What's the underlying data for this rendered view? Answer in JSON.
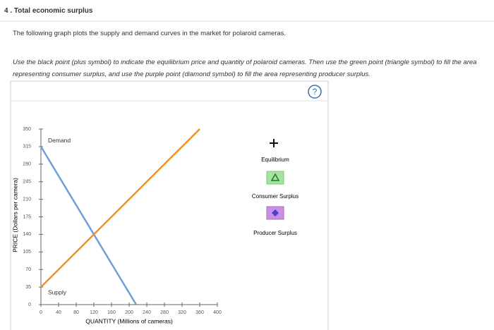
{
  "header": {
    "title": "4 . Total economic surplus"
  },
  "intro": "The following graph plots the supply and demand curves in the market for polaroid cameras.",
  "instructions": "Use the black point (plus symbol) to indicate the equilibrium price and quantity of polaroid cameras. Then use the green point (triangle symbol) to fill the area representing consumer surplus, and use the purple point (diamond symbol) to fill the area representing producer surplus.",
  "help": "?",
  "palette": [
    {
      "label": "Equilibrium"
    },
    {
      "label": "Consumer Surplus"
    },
    {
      "label": "Producer Surplus"
    }
  ],
  "chart_data": {
    "type": "line",
    "x_label": "QUANTITY (Millions of cameras)",
    "y_label": "PRICE (Dollars per camera)",
    "xlim": [
      0,
      400
    ],
    "ylim": [
      0,
      350
    ],
    "xticks": [
      0,
      40,
      80,
      120,
      160,
      200,
      240,
      280,
      320,
      360,
      400
    ],
    "yticks": [
      0,
      35,
      70,
      105,
      140,
      175,
      210,
      245,
      280,
      315,
      350
    ],
    "series": [
      {
        "name": "Demand",
        "color": "#6f9fd8",
        "x": [
          0,
          216
        ],
        "values": [
          315,
          0
        ]
      },
      {
        "name": "Supply",
        "color": "#f0902a",
        "x": [
          0,
          360
        ],
        "values": [
          35,
          350
        ]
      }
    ]
  }
}
